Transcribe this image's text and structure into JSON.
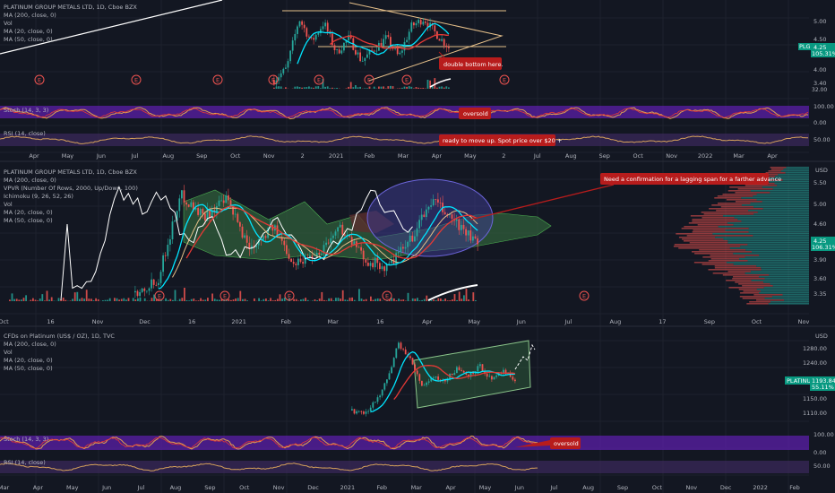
{
  "colors": {
    "bg": "#131722",
    "grid": "#1e222d",
    "up": "#26a69a",
    "down": "#ef5350",
    "cyan": "#00e5ff",
    "red_ma": "#e53935",
    "white": "#ffffff",
    "tan": "#e6c08a",
    "stoch_band": "#5b1fa8",
    "rsi_band": "#3c2a5c",
    "callout": "#b71c1c",
    "price_tag": "#089981",
    "cloud_green": "#2e5a3a",
    "cloud_red": "#5a2e2e",
    "oval": "#3d3a8a"
  },
  "panel1": {
    "legend": [
      "PLATINUM GROUP METALS LTD, 1D, Cboe BZX",
      "MA (200, close, 0)",
      "Vol",
      "MA (20, close, 0)",
      "MA (50, close, 0)"
    ],
    "y_ticks": [
      "5.00",
      "4.50",
      "4.25",
      "4.00",
      "3.70",
      "3.40",
      "32.00"
    ],
    "symbol": "PLG",
    "symbol_price": "4.25",
    "symbol_pct": "105.31%",
    "callout": "double bottom here.",
    "stoch_label": "Stoch (14, 3, 3)",
    "stoch_callout": "oversold",
    "stoch_ticks": [
      "100.00",
      "0.00"
    ],
    "rsi_label": "RSI (14, close)",
    "rsi_callout": "ready to move up. Spot price over $20 +",
    "rsi_ticks": [
      "50.00"
    ],
    "x_ticks": [
      "Apr",
      "May",
      "Jun",
      "Jul",
      "Aug",
      "Sep",
      "Oct",
      "Nov",
      "2",
      "2021",
      "Feb",
      "Mar",
      "Apr",
      "May",
      "2",
      "Jul",
      "Aug",
      "Sep",
      "Oct",
      "Nov",
      "2022",
      "Mar",
      "Apr"
    ],
    "earnings_markers": [
      "E",
      "E",
      "E",
      "E",
      "E",
      "E",
      "E",
      "E"
    ]
  },
  "panel2": {
    "legend": [
      "PLATINUM GROUP METALS LTD, 1D, Cboe BZX",
      "MA (200, close, 0)",
      "VPVR (Number Of Rows, 2000, Up/Down, 100)",
      "Ichimoku (9, 26, 52, 26)",
      "Vol",
      "MA (20, close, 0)",
      "MA (50, close, 0)"
    ],
    "currency": "USD",
    "y_ticks": [
      "5.50",
      "5.00",
      "4.60",
      "4.25",
      "3.90",
      "3.60",
      "3.35"
    ],
    "symbol_price": "4.25",
    "symbol_pct": "106.31%",
    "callout": "Need a confirmation for a lagging span for a farther advance",
    "x_ticks": [
      "Oct",
      "16",
      "Nov",
      "Dec",
      "16",
      "2021",
      "Feb",
      "Mar",
      "16",
      "Apr",
      "May",
      "Jun",
      "Jul",
      "Aug",
      "17",
      "Sep",
      "Oct",
      "Nov"
    ],
    "earnings_markers": [
      "E",
      "E",
      "E",
      "E",
      "E"
    ]
  },
  "panel3": {
    "legend": [
      "CFDs on Platinum (US$ / OZ), 1D, TVC",
      "MA (200, close, 0)",
      "Vol",
      "MA (20, close, 0)",
      "MA (50, close, 0)"
    ],
    "currency": "USD",
    "y_ticks": [
      "1280.00",
      "1240.00",
      "1200.00",
      "1150.00",
      "1110.00"
    ],
    "symbol": "PLATINUM",
    "symbol_price": "1193.84",
    "symbol_pct": "55.11%",
    "stoch_label": "Stoch (14, 3, 3)",
    "stoch_callout": "oversold",
    "stoch_ticks": [
      "100.00",
      "0.00"
    ],
    "rsi_label": "RSI (14, close)",
    "rsi_ticks": [
      "50.00"
    ],
    "x_ticks": [
      "Mar",
      "Apr",
      "May",
      "Jun",
      "Jul",
      "Aug",
      "Sep",
      "Oct",
      "Nov",
      "Dec",
      "2021",
      "Feb",
      "Mar",
      "Apr",
      "May",
      "Jun",
      "Jul",
      "Aug",
      "Sep",
      "Oct",
      "Nov",
      "Dec",
      "2022",
      "Feb"
    ]
  },
  "chart_data": [
    {
      "type": "line",
      "title": "PLATINUM GROUP METALS LTD, 1D, Cboe BZX",
      "series": [
        {
          "name": "PLG",
          "values": [
            3.4,
            3.7,
            5.0,
            4.4,
            4.9,
            4.1,
            4.5,
            3.9,
            4.2,
            4.5,
            4.0,
            4.8,
            5.0,
            4.6,
            4.25
          ]
        }
      ],
      "annotations": [
        "double bottom here."
      ],
      "last_value": 4.25
    },
    {
      "type": "line",
      "title": "PLATINUM GROUP METALS LTD, 1D, Cboe BZX",
      "series": [
        {
          "name": "PLG",
          "values": [
            3.35,
            3.6,
            5.2,
            4.8,
            5.1,
            4.2,
            4.6,
            3.9,
            4.1,
            4.6,
            4.0,
            3.8,
            4.3,
            5.1,
            4.7,
            4.25
          ]
        }
      ],
      "annotations": [
        "Need a confirmation for a lagging span for a farther advance"
      ],
      "last_value": 4.25
    },
    {
      "type": "line",
      "title": "CFDs on Platinum (US$ / OZ), 1D, TVC",
      "series": [
        {
          "name": "PLATINUM",
          "values": [
            1130,
            1120,
            1150,
            1200,
            1290,
            1250,
            1190,
            1210,
            1200,
            1230,
            1215,
            1235,
            1200,
            1225,
            1193.84
          ]
        }
      ],
      "annotations": [
        "oversold"
      ],
      "last_value": 1193.84
    }
  ]
}
